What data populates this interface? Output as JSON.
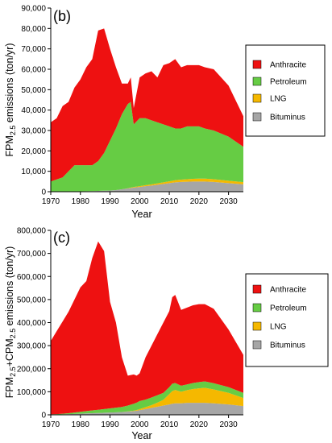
{
  "chart_data": [
    {
      "type": "area",
      "stacked": true,
      "panel_label": "(b)",
      "xlabel": "Year",
      "ylabel": "FPM2.5 emissions (ton/yr)",
      "ylabel_parts": [
        "FPM",
        "2.5",
        " emissions (ton/yr)"
      ],
      "xlim": [
        1970,
        2035
      ],
      "ylim": [
        0,
        90000
      ],
      "x_ticks": [
        1970,
        1980,
        1990,
        2000,
        2010,
        2020,
        2030
      ],
      "y_ticks": [
        0,
        10000,
        20000,
        30000,
        40000,
        50000,
        60000,
        70000,
        80000,
        90000
      ],
      "y_tick_labels": [
        "0",
        "10,000",
        "20,000",
        "30,000",
        "40,000",
        "50,000",
        "60,000",
        "70,000",
        "80,000",
        "90,000"
      ],
      "grid": false,
      "legend_position": "right",
      "x": [
        1970,
        1972,
        1974,
        1976,
        1978,
        1980,
        1982,
        1984,
        1986,
        1988,
        1990,
        1992,
        1994,
        1996,
        1997,
        1998,
        2000,
        2002,
        2004,
        2006,
        2008,
        2010,
        2012,
        2014,
        2016,
        2018,
        2020,
        2022,
        2025,
        2030,
        2035
      ],
      "series": [
        {
          "name": "Bituminus",
          "color": "#a6a6a6",
          "values": [
            100,
            100,
            100,
            150,
            200,
            200,
            250,
            300,
            400,
            500,
            600,
            800,
            1200,
            1600,
            1800,
            2000,
            2300,
            2700,
            3000,
            3400,
            3800,
            4200,
            4600,
            4800,
            4900,
            5000,
            5000,
            5000,
            4800,
            4200,
            3600
          ]
        },
        {
          "name": "LNG",
          "color": "#f5b800",
          "values": [
            0,
            0,
            0,
            0,
            0,
            0,
            0,
            0,
            0,
            0,
            0,
            0,
            0,
            100,
            200,
            300,
            400,
            500,
            600,
            700,
            800,
            900,
            1000,
            1100,
            1200,
            1300,
            1400,
            1400,
            1300,
            1200,
            1100
          ]
        },
        {
          "name": "Petroleum",
          "color": "#66cc44",
          "values": [
            4900,
            5900,
            6900,
            9850,
            12800,
            12800,
            12750,
            12700,
            14600,
            18500,
            24400,
            30200,
            36800,
            41300,
            42000,
            30700,
            33300,
            32800,
            31400,
            29900,
            28400,
            26900,
            25400,
            25100,
            25900,
            25700,
            25600,
            24600,
            23900,
            21600,
            17300
          ]
        },
        {
          "name": "Anthracite",
          "color": "#ee1111",
          "values": [
            29000,
            30000,
            35000,
            34000,
            38000,
            42000,
            48000,
            52000,
            64000,
            61000,
            45000,
            30000,
            15000,
            10000,
            12000,
            8000,
            20000,
            22000,
            24000,
            22000,
            29000,
            31000,
            34000,
            30000,
            30000,
            30000,
            30000,
            30000,
            30000,
            25000,
            15000
          ]
        }
      ]
    },
    {
      "type": "area",
      "stacked": true,
      "panel_label": "(c)",
      "xlabel": "Year",
      "ylabel": "FPM2.5+CPM2.5 emissions (ton/yr)",
      "ylabel_parts": [
        "FPM",
        "2.5",
        "+CPM",
        "2.5",
        " emissions (ton/yr)"
      ],
      "xlim": [
        1970,
        2035
      ],
      "ylim": [
        0,
        800000
      ],
      "x_ticks": [
        1970,
        1980,
        1990,
        2000,
        2010,
        2020,
        2030
      ],
      "y_ticks": [
        0,
        100000,
        200000,
        300000,
        400000,
        500000,
        600000,
        700000,
        800000
      ],
      "y_tick_labels": [
        "0",
        "100,000",
        "200,000",
        "300,000",
        "400,000",
        "500,000",
        "600,000",
        "700,000",
        "800,000"
      ],
      "grid": false,
      "legend_position": "right",
      "x": [
        1970,
        1972,
        1974,
        1976,
        1978,
        1980,
        1982,
        1984,
        1986,
        1988,
        1990,
        1992,
        1994,
        1996,
        1998,
        1999,
        2000,
        2002,
        2004,
        2006,
        2008,
        2010,
        2011,
        2012,
        2014,
        2016,
        2018,
        2020,
        2022,
        2025,
        2030,
        2035
      ],
      "series": [
        {
          "name": "Bituminus",
          "color": "#a6a6a6",
          "values": [
            0,
            1000,
            2000,
            3000,
            4000,
            5000,
            6000,
            7000,
            8000,
            9000,
            10000,
            11000,
            12000,
            14000,
            16000,
            18000,
            20000,
            25000,
            30000,
            35000,
            40000,
            45000,
            48000,
            50000,
            50000,
            52000,
            52000,
            52000,
            52000,
            50000,
            45000,
            38000
          ]
        },
        {
          "name": "LNG",
          "color": "#f5b800",
          "values": [
            0,
            0,
            0,
            0,
            0,
            0,
            0,
            0,
            0,
            0,
            0,
            0,
            0,
            1000,
            2000,
            3000,
            5000,
            8000,
            12000,
            18000,
            25000,
            45000,
            55000,
            58000,
            50000,
            55000,
            60000,
            63000,
            65000,
            60000,
            50000,
            35000
          ]
        },
        {
          "name": "Petroleum",
          "color": "#66cc44",
          "values": [
            2000,
            2000,
            3000,
            4000,
            6000,
            8000,
            10000,
            12000,
            14000,
            16000,
            18000,
            20000,
            22000,
            25000,
            30000,
            32000,
            35000,
            33000,
            33000,
            32000,
            30000,
            30000,
            32000,
            30000,
            26000,
            25000,
            26000,
            27000,
            28000,
            27000,
            25000,
            22000
          ]
        },
        {
          "name": "Anthracite",
          "color": "#ee1111",
          "values": [
            318000,
            360000,
            400000,
            440000,
            490000,
            540000,
            564000,
            661000,
            730000,
            685000,
            462000,
            369000,
            216000,
            130000,
            127000,
            117000,
            120000,
            184000,
            225000,
            265000,
            305000,
            330000,
            375000,
            382000,
            329000,
            333000,
            337000,
            338000,
            335000,
            323000,
            250000,
            165000
          ]
        }
      ],
      "legend_order": [
        "Anthracite",
        "Petroleum",
        "LNG",
        "Bituminus"
      ]
    }
  ]
}
